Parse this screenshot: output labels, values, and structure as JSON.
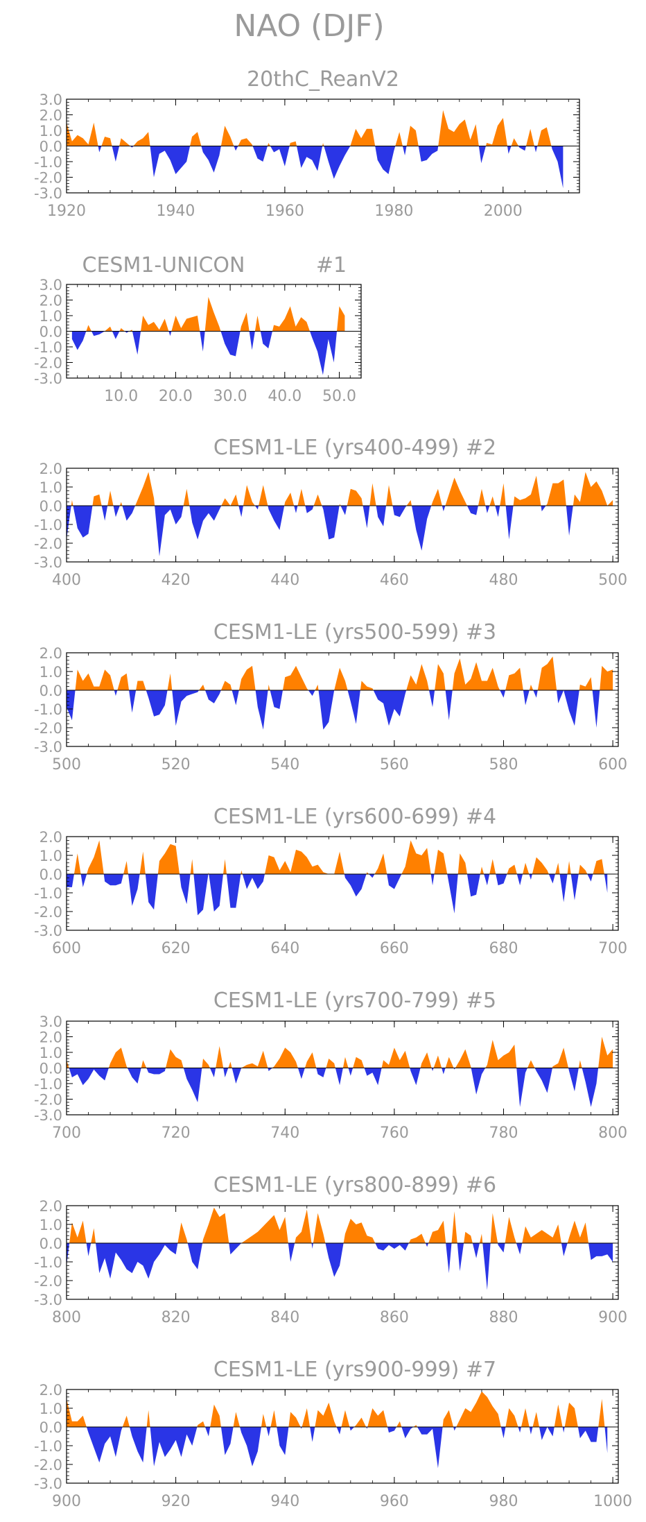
{
  "figure": {
    "title": "NAO (DJF)",
    "pos_color": "#ff8000",
    "neg_color": "#2a35e6",
    "axis_color": "#000000",
    "text_color": "#9a9a9a"
  },
  "chart_data": [
    {
      "type": "area",
      "title": "20thC_ReanV2",
      "xlim": [
        1920,
        2014
      ],
      "ylim": [
        -3.0,
        3.0
      ],
      "xticks": [
        1920,
        1940,
        1960,
        1980,
        2000
      ],
      "xtick_labels": [
        "1920",
        "1940",
        "1960",
        "1980",
        "2000"
      ],
      "yticks": [
        3.0,
        2.0,
        1.0,
        0.0,
        -1.0,
        -2.0,
        -3.0
      ],
      "ytick_labels": [
        "3.0",
        "2.0",
        "1.0",
        "0.0",
        "-1.0",
        "-2.0",
        "-3.0"
      ],
      "x_start": 1920,
      "values": [
        1.5,
        0.3,
        0.7,
        0.5,
        0.1,
        1.5,
        -0.4,
        0.6,
        0.5,
        -1.0,
        0.5,
        0.2,
        -0.1,
        0.3,
        0.5,
        0.9,
        -2.0,
        -0.5,
        -0.3,
        -0.9,
        -1.8,
        -1.4,
        -1.0,
        0.6,
        0.9,
        -0.4,
        -0.9,
        -1.7,
        -0.6,
        1.3,
        0.6,
        -0.3,
        0.4,
        0.5,
        0.1,
        -0.8,
        -1.0,
        0.2,
        -0.4,
        -0.2,
        -1.3,
        0.2,
        0.3,
        -1.4,
        -0.7,
        -0.9,
        -1.6,
        0.2,
        -1.0,
        -2.1,
        -1.3,
        -0.6,
        0.0,
        1.1,
        0.5,
        1.1,
        1.1,
        -0.9,
        -1.5,
        -1.8,
        -0.3,
        0.9,
        -0.6,
        1.3,
        1.0,
        -1.0,
        -0.9,
        -0.5,
        -0.3,
        2.3,
        1.1,
        0.9,
        1.4,
        1.7,
        0.4,
        1.4,
        -1.1,
        0.2,
        0.1,
        1.3,
        1.8,
        -0.5,
        0.5,
        -0.1,
        -0.3,
        1.1,
        -0.4,
        1.0,
        1.2,
        -0.2,
        -1.0,
        -2.7
      ]
    },
    {
      "type": "area",
      "title": "CESM1-UNICON",
      "tag": "#1",
      "xlim": [
        0,
        54
      ],
      "ylim": [
        -3.0,
        3.0
      ],
      "xticks": [
        10,
        20,
        30,
        40,
        50
      ],
      "xtick_labels": [
        "10.0",
        "20.0",
        "30.0",
        "40.0",
        "50.0"
      ],
      "yticks": [
        3.0,
        2.0,
        1.0,
        0.0,
        -1.0,
        -2.0,
        -3.0
      ],
      "ytick_labels": [
        "3.0",
        "2.0",
        "1.0",
        "0.0",
        "-1.0",
        "-2.0",
        "-3.0"
      ],
      "x_start": 1,
      "values": [
        -0.5,
        -1.2,
        -0.6,
        0.4,
        -0.3,
        -0.2,
        0.0,
        0.3,
        -0.5,
        0.2,
        -0.1,
        0.1,
        -1.5,
        1.0,
        0.4,
        0.6,
        0.1,
        0.8,
        -0.3,
        1.0,
        0.2,
        0.8,
        0.9,
        1.0,
        -1.3,
        2.2,
        1.2,
        0.3,
        -0.8,
        -1.5,
        -1.6,
        0.3,
        1.2,
        -1.2,
        1.0,
        -0.8,
        -1.1,
        0.4,
        0.3,
        0.8,
        1.6,
        0.3,
        0.9,
        0.6,
        -0.4,
        -1.3,
        -2.8,
        -0.5,
        -2.0,
        1.6,
        1.0
      ]
    },
    {
      "type": "area",
      "title": "CESM1-LE (yrs400-499)",
      "tag": "#2",
      "xlim": [
        400,
        501
      ],
      "ylim": [
        -3.0,
        2.0
      ],
      "xticks": [
        400,
        420,
        440,
        460,
        480,
        500
      ],
      "xtick_labels": [
        "400",
        "420",
        "440",
        "460",
        "480",
        "500"
      ],
      "yticks": [
        2.0,
        1.0,
        0.0,
        -1.0,
        -2.0,
        -3.0
      ],
      "ytick_labels": [
        "2.0",
        "1.0",
        "0.0",
        "-1.0",
        "-2.0",
        "-3.0"
      ],
      "x_start": 400,
      "values": [
        -1.8,
        0.3,
        -1.2,
        -1.7,
        -1.5,
        0.5,
        0.6,
        -0.8,
        0.8,
        -0.6,
        0.2,
        -0.8,
        -0.4,
        0.3,
        1.0,
        1.8,
        0.4,
        -2.7,
        -0.5,
        -0.2,
        -1.0,
        -0.6,
        0.9,
        -0.9,
        -1.8,
        -0.8,
        -0.4,
        -0.8,
        -0.2,
        0.4,
        0.0,
        0.6,
        -0.6,
        1.1,
        0.2,
        -0.2,
        1.1,
        -0.2,
        -0.8,
        -1.3,
        0.2,
        0.7,
        -0.4,
        0.9,
        -0.4,
        -0.2,
        0.6,
        -0.2,
        -1.8,
        -1.7,
        0.1,
        -0.5,
        0.9,
        0.8,
        0.4,
        -1.2,
        1.2,
        -0.6,
        -1.1,
        1.1,
        -0.5,
        -0.6,
        -0.1,
        0.3,
        -1.3,
        -2.4,
        -0.7,
        0.2,
        0.9,
        -0.3,
        0.6,
        1.5,
        0.8,
        0.2,
        -0.4,
        -0.5,
        0.9,
        -0.4,
        0.5,
        -0.6,
        1.2,
        -1.8,
        0.5,
        0.3,
        0.4,
        0.6,
        1.6,
        -0.3,
        0.1,
        1.2,
        1.2,
        1.4,
        -1.6,
        0.6,
        0.2,
        1.8,
        1.0,
        1.3,
        0.8,
        0.0,
        0.3
      ]
    },
    {
      "type": "area",
      "title": "CESM1-LE (yrs500-599)",
      "tag": "#3",
      "xlim": [
        500,
        601
      ],
      "ylim": [
        -3.0,
        2.0
      ],
      "xticks": [
        500,
        520,
        540,
        560,
        580,
        600
      ],
      "xtick_labels": [
        "500",
        "520",
        "540",
        "560",
        "580",
        "600"
      ],
      "yticks": [
        2.0,
        1.0,
        0.0,
        -1.0,
        -2.0,
        -3.0
      ],
      "ytick_labels": [
        "2.0",
        "1.0",
        "0.0",
        "-1.0",
        "-2.0",
        "-3.0"
      ],
      "x_start": 500,
      "values": [
        -0.9,
        -1.6,
        1.1,
        0.5,
        0.9,
        0.2,
        0.2,
        1.1,
        0.8,
        -0.3,
        0.7,
        0.9,
        -1.2,
        0.5,
        0.5,
        -0.4,
        -1.4,
        -1.3,
        -0.8,
        0.9,
        -1.9,
        -0.6,
        -0.3,
        -0.2,
        -0.1,
        0.3,
        -0.5,
        -0.7,
        -0.2,
        0.5,
        0.3,
        -0.8,
        0.6,
        1.1,
        1.3,
        -0.9,
        -2.1,
        0.3,
        -0.9,
        -1.0,
        0.7,
        0.8,
        1.3,
        0.7,
        0.1,
        -0.3,
        0.3,
        -2.1,
        -1.7,
        0.0,
        1.2,
        0.5,
        -0.6,
        -1.8,
        0.5,
        0.2,
        0.1,
        -0.5,
        -0.7,
        -1.9,
        -1.0,
        -1.4,
        -0.2,
        0.8,
        0.3,
        1.4,
        0.5,
        -0.9,
        1.4,
        0.9,
        -1.6,
        0.9,
        1.7,
        0.3,
        0.6,
        1.5,
        0.5,
        0.5,
        1.2,
        0.2,
        -0.4,
        0.8,
        0.9,
        1.2,
        -0.8,
        0.3,
        -0.4,
        1.2,
        1.4,
        1.8,
        -0.7,
        0.0,
        -1.1,
        -1.9,
        0.3,
        0.2,
        0.7,
        -2.0,
        1.3,
        1.0,
        1.1
      ]
    },
    {
      "type": "area",
      "title": "CESM1-LE (yrs600-699)",
      "tag": "#4",
      "xlim": [
        600,
        701
      ],
      "ylim": [
        -3.0,
        2.0
      ],
      "xticks": [
        600,
        620,
        640,
        660,
        680,
        700
      ],
      "xtick_labels": [
        "600",
        "620",
        "640",
        "660",
        "680",
        "700"
      ],
      "yticks": [
        2.0,
        1.0,
        0.0,
        -1.0,
        -2.0,
        -3.0
      ],
      "ytick_labels": [
        "2.0",
        "1.0",
        "0.0",
        "-1.0",
        "-2.0",
        "-3.0"
      ],
      "x_start": 600,
      "values": [
        -0.7,
        -0.7,
        1.1,
        -0.7,
        0.3,
        0.9,
        1.8,
        -0.4,
        -0.6,
        -0.6,
        -0.5,
        0.7,
        -1.7,
        -0.8,
        1.2,
        -1.5,
        -1.9,
        0.7,
        1.1,
        1.6,
        1.5,
        -0.7,
        -1.6,
        0.8,
        -2.2,
        -1.9,
        0.1,
        -2.0,
        -1.7,
        0.8,
        -1.8,
        -1.8,
        0.2,
        -0.8,
        -0.2,
        -0.8,
        -0.4,
        1.0,
        0.9,
        0.2,
        0.7,
        0.1,
        1.3,
        1.2,
        0.9,
        0.4,
        0.5,
        0.1,
        0.0,
        0.0,
        1.2,
        -0.2,
        -0.6,
        -1.2,
        -0.8,
        0.1,
        -0.2,
        0.3,
        1.1,
        -0.6,
        -0.8,
        -0.2,
        0.4,
        1.8,
        1.1,
        1.0,
        1.4,
        -0.6,
        1.3,
        1.1,
        -0.5,
        -2.1,
        1.1,
        0.6,
        -1.2,
        -1.1,
        0.4,
        -0.6,
        0.8,
        -0.6,
        -0.5,
        0.3,
        0.5,
        -0.6,
        0.6,
        -0.3,
        0.9,
        0.6,
        0.2,
        -0.5,
        0.6,
        -1.5,
        0.7,
        -1.4,
        0.5,
        0.2,
        -0.4,
        0.7,
        0.8,
        -1.0
      ]
    },
    {
      "type": "area",
      "title": "CESM1-LE (yrs700-799)",
      "tag": "#5",
      "xlim": [
        700,
        801
      ],
      "ylim": [
        -3.0,
        3.0
      ],
      "xticks": [
        700,
        720,
        740,
        760,
        780,
        800
      ],
      "xtick_labels": [
        "700",
        "720",
        "740",
        "760",
        "780",
        "800"
      ],
      "yticks": [
        3.0,
        2.0,
        1.0,
        0.0,
        -1.0,
        -2.0,
        -3.0
      ],
      "ytick_labels": [
        "3.0",
        "2.0",
        "1.0",
        "0.0",
        "-1.0",
        "-2.0",
        "-3.0"
      ],
      "x_start": 700,
      "values": [
        0.5,
        -0.6,
        -0.4,
        -1.1,
        -0.7,
        -0.1,
        -0.5,
        -0.8,
        0.3,
        1.0,
        1.3,
        0.1,
        -0.6,
        -1.0,
        0.5,
        -0.3,
        -0.4,
        -0.4,
        -0.2,
        1.2,
        0.7,
        0.5,
        -0.7,
        -1.4,
        -2.2,
        0.6,
        0.2,
        -0.6,
        1.4,
        -0.6,
        0.4,
        -1.0,
        0.0,
        0.2,
        0.3,
        0.1,
        1.1,
        -0.2,
        0.1,
        0.6,
        1.3,
        1.0,
        0.4,
        -0.7,
        0.4,
        1.0,
        -0.4,
        -0.6,
        0.6,
        0.3,
        -1.1,
        0.7,
        -0.5,
        0.7,
        0.5,
        -0.5,
        -0.3,
        -1.1,
        0.5,
        0.2,
        1.3,
        0.5,
        1.1,
        -0.2,
        -1.1,
        0.3,
        1.0,
        -0.2,
        0.8,
        -0.4,
        0.7,
        -0.1,
        0.5,
        1.2,
        0.1,
        -1.7,
        -0.4,
        0.2,
        1.8,
        0.5,
        0.8,
        1.0,
        1.5,
        -2.5,
        -0.3,
        0.5,
        -0.2,
        -0.8,
        -1.6,
        0.1,
        0.3,
        1.3,
        -0.2,
        -1.5,
        0.5,
        -0.9,
        -2.5,
        -1.0,
        2.0,
        0.8,
        1.2
      ]
    },
    {
      "type": "area",
      "title": "CESM1-LE (yrs800-899)",
      "tag": "#6",
      "xlim": [
        800,
        901
      ],
      "ylim": [
        -3.0,
        2.0
      ],
      "xticks": [
        800,
        820,
        840,
        860,
        880,
        900
      ],
      "xtick_labels": [
        "800",
        "820",
        "840",
        "860",
        "880",
        "900"
      ],
      "yticks": [
        2.0,
        1.0,
        0.0,
        -1.0,
        -2.0,
        -3.0
      ],
      "ytick_labels": [
        "2.0",
        "1.0",
        "0.0",
        "-1.0",
        "-2.0",
        "-3.0"
      ],
      "x_start": 800,
      "values": [
        -1.2,
        1.1,
        0.3,
        1.2,
        -0.7,
        0.8,
        -1.6,
        -0.8,
        -1.9,
        -0.5,
        -0.9,
        -1.4,
        -1.6,
        -1.0,
        -1.2,
        -1.9,
        -1.0,
        -0.6,
        -0.1,
        -0.4,
        -0.6,
        1.1,
        0.2,
        -1.0,
        -1.4,
        0.2,
        1.0,
        1.9,
        1.4,
        1.6,
        -0.6,
        -0.3,
        0.0,
        0.2,
        0.4,
        0.6,
        0.9,
        1.2,
        1.5,
        0.7,
        1.4,
        -1.0,
        0.3,
        0.6,
        1.8,
        -0.3,
        1.6,
        0.5,
        -0.8,
        -1.8,
        -1.2,
        0.5,
        1.3,
        1.0,
        1.1,
        0.4,
        0.3,
        -0.3,
        -0.4,
        -0.1,
        -0.3,
        -0.1,
        -0.4,
        0.2,
        0.3,
        0.5,
        -0.2,
        0.6,
        0.7,
        1.2,
        -1.6,
        1.7,
        -1.5,
        0.6,
        0.4,
        -0.8,
        0.5,
        -2.5,
        1.6,
        -0.1,
        -0.5,
        1.4,
        0.3,
        -0.6,
        0.9,
        0.3,
        0.5,
        0.7,
        0.5,
        0.3,
        1.0,
        -0.7,
        0.3,
        1.2,
        0.3,
        1.1,
        -0.9,
        -0.7,
        -0.7,
        -0.6,
        -1.0
      ]
    },
    {
      "type": "area",
      "title": "CESM1-LE (yrs900-999)",
      "tag": "#7",
      "xlim": [
        900,
        1001
      ],
      "ylim": [
        -3.0,
        2.0
      ],
      "xticks": [
        900,
        920,
        940,
        960,
        980,
        1000
      ],
      "xtick_labels": [
        "900",
        "920",
        "940",
        "960",
        "980",
        "1000"
      ],
      "yticks": [
        2.0,
        1.0,
        0.0,
        -1.0,
        -2.0,
        -3.0
      ],
      "ytick_labels": [
        "2.0",
        "1.0",
        "0.0",
        "-1.0",
        "-2.0",
        "-3.0"
      ],
      "x_start": 900,
      "values": [
        1.5,
        0.3,
        0.3,
        0.6,
        -0.3,
        -1.1,
        -1.9,
        -0.9,
        -0.5,
        -1.6,
        -0.2,
        0.6,
        -0.5,
        -1.3,
        -1.9,
        0.9,
        -2.1,
        -0.8,
        -1.6,
        -1.2,
        -0.7,
        -1.6,
        -0.4,
        -1.0,
        0.1,
        0.3,
        -0.5,
        1.2,
        0.6,
        -1.5,
        -0.9,
        0.8,
        -0.3,
        -1.0,
        -2.1,
        -1.3,
        0.7,
        -0.5,
        0.9,
        -1.0,
        -1.5,
        0.8,
        0.5,
        -0.1,
        1.0,
        -0.8,
        0.9,
        0.6,
        1.3,
        0.3,
        -0.4,
        0.9,
        -0.2,
        0.1,
        0.5,
        -0.1,
        1.0,
        0.6,
        0.9,
        -0.3,
        -0.2,
        0.3,
        -0.6,
        -0.1,
        0.1,
        -0.4,
        -0.4,
        -0.1,
        -2.2,
        0.4,
        0.9,
        -0.2,
        0.4,
        1.0,
        0.8,
        1.3,
        1.9,
        1.6,
        1.1,
        0.7,
        -0.6,
        1.0,
        0.6,
        -0.3,
        1.0,
        -0.4,
        0.8,
        -0.7,
        0.0,
        -0.5,
        1.2,
        -0.3,
        1.3,
        1.0,
        -0.6,
        -0.2,
        -0.8,
        -0.8,
        1.5,
        -1.4
      ]
    }
  ]
}
